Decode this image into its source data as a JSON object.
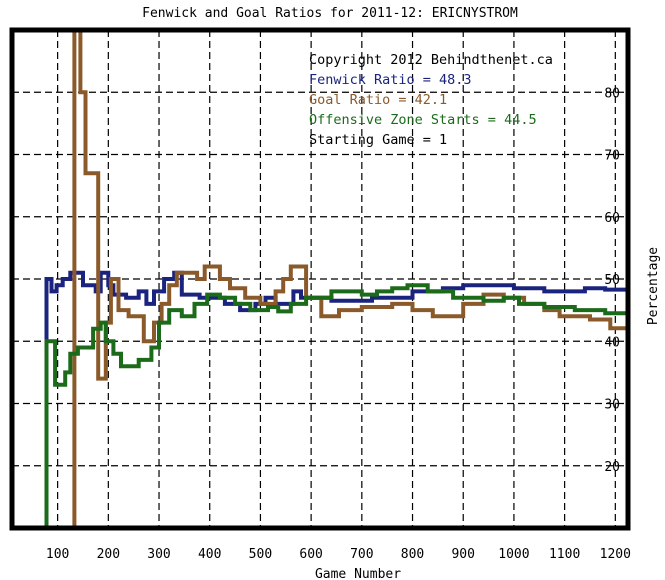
{
  "chart_data": {
    "type": "line",
    "title": "Fenwick and Goal Ratios for 2011-12: ERICNYSTROM",
    "xlabel": "Game Number",
    "ylabel": "Percentage",
    "xlim": [
      10,
      1225
    ],
    "ylim": [
      10,
      90
    ],
    "grid": true,
    "y_axis_side": "right",
    "x_ticks": [
      100,
      200,
      300,
      400,
      500,
      600,
      700,
      800,
      900,
      1000,
      1100,
      1200
    ],
    "y_ticks": [
      20,
      30,
      40,
      50,
      60,
      70,
      80
    ],
    "annotations": [
      {
        "text": "Copyright 2012 Behindthenet.ca",
        "color": "#000000"
      },
      {
        "text": "Fenwick Ratio = 48.3",
        "color": "#1a237e"
      },
      {
        "text": "Goal Ratio = 42.1",
        "color": "#8b5a2b"
      },
      {
        "text": "Offensive Zone Starts = 44.5",
        "color": "#1b6b1b"
      },
      {
        "text": "Starting Game = 1",
        "color": "#000000"
      }
    ],
    "series": [
      {
        "name": "Fenwick Ratio",
        "color": "#1a237e",
        "points": [
          [
            78,
            10
          ],
          [
            78,
            50
          ],
          [
            88,
            50
          ],
          [
            88,
            48
          ],
          [
            98,
            48
          ],
          [
            98,
            49
          ],
          [
            110,
            49
          ],
          [
            110,
            50
          ],
          [
            125,
            50
          ],
          [
            125,
            51
          ],
          [
            150,
            51
          ],
          [
            150,
            49
          ],
          [
            175,
            49
          ],
          [
            175,
            48
          ],
          [
            185,
            48
          ],
          [
            185,
            51
          ],
          [
            200,
            51
          ],
          [
            200,
            49
          ],
          [
            210,
            49
          ],
          [
            210,
            47.5
          ],
          [
            235,
            47.5
          ],
          [
            235,
            47
          ],
          [
            260,
            47
          ],
          [
            260,
            48
          ],
          [
            275,
            48
          ],
          [
            275,
            46
          ],
          [
            290,
            46
          ],
          [
            290,
            48
          ],
          [
            310,
            48
          ],
          [
            310,
            50
          ],
          [
            330,
            50
          ],
          [
            330,
            51
          ],
          [
            345,
            51
          ],
          [
            345,
            47.5
          ],
          [
            380,
            47.5
          ],
          [
            380,
            47
          ],
          [
            430,
            47
          ],
          [
            430,
            46
          ],
          [
            460,
            46
          ],
          [
            460,
            45
          ],
          [
            490,
            45
          ],
          [
            490,
            46
          ],
          [
            510,
            46
          ],
          [
            510,
            47
          ],
          [
            530,
            47
          ],
          [
            530,
            46
          ],
          [
            565,
            46
          ],
          [
            565,
            48
          ],
          [
            580,
            48
          ],
          [
            580,
            47
          ],
          [
            640,
            47
          ],
          [
            640,
            46.5
          ],
          [
            720,
            46.5
          ],
          [
            720,
            47
          ],
          [
            800,
            47
          ],
          [
            800,
            48
          ],
          [
            860,
            48
          ],
          [
            860,
            48.5
          ],
          [
            900,
            48.5
          ],
          [
            900,
            49
          ],
          [
            1000,
            49
          ],
          [
            1000,
            48.5
          ],
          [
            1060,
            48.5
          ],
          [
            1060,
            48
          ],
          [
            1140,
            48
          ],
          [
            1140,
            48.5
          ],
          [
            1180,
            48.5
          ],
          [
            1180,
            48.3
          ],
          [
            1225,
            48.3
          ]
        ]
      },
      {
        "name": "Goal Ratio",
        "color": "#8b5a2b",
        "points": [
          [
            133,
            10
          ],
          [
            133,
            90
          ],
          [
            145,
            90
          ],
          [
            145,
            80
          ],
          [
            155,
            80
          ],
          [
            155,
            67
          ],
          [
            180,
            67
          ],
          [
            180,
            34
          ],
          [
            195,
            34
          ],
          [
            195,
            43
          ],
          [
            205,
            43
          ],
          [
            205,
            50
          ],
          [
            220,
            50
          ],
          [
            220,
            45
          ],
          [
            240,
            45
          ],
          [
            240,
            44
          ],
          [
            270,
            44
          ],
          [
            270,
            40
          ],
          [
            290,
            40
          ],
          [
            290,
            43
          ],
          [
            305,
            43
          ],
          [
            305,
            46
          ],
          [
            320,
            46
          ],
          [
            320,
            49
          ],
          [
            335,
            49
          ],
          [
            335,
            51
          ],
          [
            375,
            51
          ],
          [
            375,
            50
          ],
          [
            390,
            50
          ],
          [
            390,
            52
          ],
          [
            420,
            52
          ],
          [
            420,
            50
          ],
          [
            440,
            50
          ],
          [
            440,
            48.5
          ],
          [
            470,
            48.5
          ],
          [
            470,
            47
          ],
          [
            500,
            47
          ],
          [
            500,
            46
          ],
          [
            530,
            46
          ],
          [
            530,
            48
          ],
          [
            545,
            48
          ],
          [
            545,
            50
          ],
          [
            560,
            50
          ],
          [
            560,
            52
          ],
          [
            590,
            52
          ],
          [
            590,
            47
          ],
          [
            620,
            47
          ],
          [
            620,
            44
          ],
          [
            650,
            44
          ],
          [
            650,
            44
          ],
          [
            655,
            44
          ],
          [
            655,
            45
          ],
          [
            700,
            45
          ],
          [
            700,
            45.5
          ],
          [
            760,
            45.5
          ],
          [
            760,
            46
          ],
          [
            800,
            46
          ],
          [
            800,
            45
          ],
          [
            840,
            45
          ],
          [
            840,
            44
          ],
          [
            900,
            44
          ],
          [
            900,
            46
          ],
          [
            940,
            46
          ],
          [
            940,
            47.5
          ],
          [
            980,
            47.5
          ],
          [
            980,
            47
          ],
          [
            1020,
            47
          ],
          [
            1020,
            46
          ],
          [
            1060,
            46
          ],
          [
            1060,
            45
          ],
          [
            1090,
            45
          ],
          [
            1090,
            44
          ],
          [
            1150,
            44
          ],
          [
            1150,
            43.5
          ],
          [
            1190,
            43.5
          ],
          [
            1190,
            42.1
          ],
          [
            1225,
            42.1
          ]
        ]
      },
      {
        "name": "Offensive Zone Starts",
        "color": "#1b6b1b",
        "points": [
          [
            78,
            10
          ],
          [
            78,
            40
          ],
          [
            95,
            40
          ],
          [
            95,
            33
          ],
          [
            115,
            33
          ],
          [
            115,
            35
          ],
          [
            125,
            35
          ],
          [
            125,
            38
          ],
          [
            140,
            38
          ],
          [
            140,
            39
          ],
          [
            170,
            39
          ],
          [
            170,
            42
          ],
          [
            185,
            42
          ],
          [
            185,
            43
          ],
          [
            195,
            43
          ],
          [
            195,
            40
          ],
          [
            210,
            40
          ],
          [
            210,
            38
          ],
          [
            225,
            38
          ],
          [
            225,
            36
          ],
          [
            260,
            36
          ],
          [
            260,
            37
          ],
          [
            285,
            37
          ],
          [
            285,
            39
          ],
          [
            300,
            39
          ],
          [
            300,
            43
          ],
          [
            320,
            43
          ],
          [
            320,
            45
          ],
          [
            345,
            45
          ],
          [
            345,
            44
          ],
          [
            370,
            44
          ],
          [
            370,
            46
          ],
          [
            395,
            46
          ],
          [
            395,
            47.5
          ],
          [
            420,
            47.5
          ],
          [
            420,
            47
          ],
          [
            450,
            47
          ],
          [
            450,
            46
          ],
          [
            480,
            46
          ],
          [
            480,
            45
          ],
          [
            515,
            45
          ],
          [
            515,
            45.5
          ],
          [
            535,
            45.5
          ],
          [
            535,
            44.8
          ],
          [
            560,
            44.8
          ],
          [
            560,
            46
          ],
          [
            590,
            46
          ],
          [
            590,
            47
          ],
          [
            640,
            47
          ],
          [
            640,
            48
          ],
          [
            700,
            48
          ],
          [
            700,
            47.5
          ],
          [
            730,
            47.5
          ],
          [
            730,
            48
          ],
          [
            760,
            48
          ],
          [
            760,
            48.5
          ],
          [
            790,
            48.5
          ],
          [
            790,
            49
          ],
          [
            830,
            49
          ],
          [
            830,
            48
          ],
          [
            880,
            48
          ],
          [
            880,
            47
          ],
          [
            940,
            47
          ],
          [
            940,
            46.5
          ],
          [
            980,
            46.5
          ],
          [
            980,
            47
          ],
          [
            1010,
            47
          ],
          [
            1010,
            46
          ],
          [
            1060,
            46
          ],
          [
            1060,
            45.5
          ],
          [
            1120,
            45.5
          ],
          [
            1120,
            45
          ],
          [
            1180,
            45
          ],
          [
            1180,
            44.5
          ],
          [
            1225,
            44.5
          ]
        ]
      }
    ]
  }
}
